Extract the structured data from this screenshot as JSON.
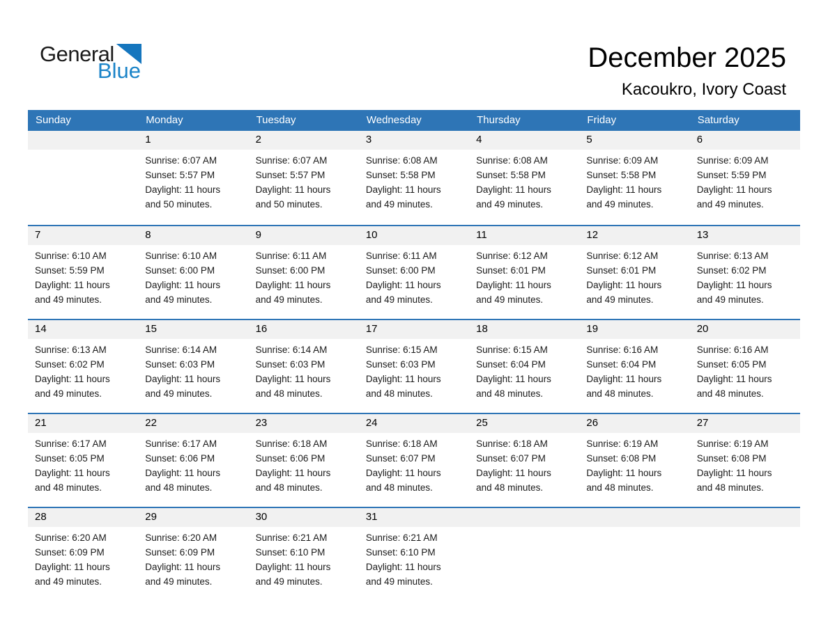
{
  "logo": {
    "part1": "General",
    "part2": "Blue"
  },
  "page_header": {
    "title": "December 2025",
    "subtitle": "Kacoukro, Ivory Coast"
  },
  "colors": {
    "header_blue": "#2E75B6",
    "band_gray": "#F1F1F1",
    "logo_blue": "#1B84C8",
    "triangle_blue": "#1576BE"
  },
  "calendar": {
    "day_names": [
      "Sunday",
      "Monday",
      "Tuesday",
      "Wednesday",
      "Thursday",
      "Friday",
      "Saturday"
    ],
    "weeks": [
      [
        null,
        {
          "num": "1",
          "sunrise": "Sunrise: 6:07 AM",
          "sunset": "Sunset: 5:57 PM",
          "daylight": "Daylight: 11 hours and 50 minutes."
        },
        {
          "num": "2",
          "sunrise": "Sunrise: 6:07 AM",
          "sunset": "Sunset: 5:57 PM",
          "daylight": "Daylight: 11 hours and 50 minutes."
        },
        {
          "num": "3",
          "sunrise": "Sunrise: 6:08 AM",
          "sunset": "Sunset: 5:58 PM",
          "daylight": "Daylight: 11 hours and 49 minutes."
        },
        {
          "num": "4",
          "sunrise": "Sunrise: 6:08 AM",
          "sunset": "Sunset: 5:58 PM",
          "daylight": "Daylight: 11 hours and 49 minutes."
        },
        {
          "num": "5",
          "sunrise": "Sunrise: 6:09 AM",
          "sunset": "Sunset: 5:58 PM",
          "daylight": "Daylight: 11 hours and 49 minutes."
        },
        {
          "num": "6",
          "sunrise": "Sunrise: 6:09 AM",
          "sunset": "Sunset: 5:59 PM",
          "daylight": "Daylight: 11 hours and 49 minutes."
        }
      ],
      [
        {
          "num": "7",
          "sunrise": "Sunrise: 6:10 AM",
          "sunset": "Sunset: 5:59 PM",
          "daylight": "Daylight: 11 hours and 49 minutes."
        },
        {
          "num": "8",
          "sunrise": "Sunrise: 6:10 AM",
          "sunset": "Sunset: 6:00 PM",
          "daylight": "Daylight: 11 hours and 49 minutes."
        },
        {
          "num": "9",
          "sunrise": "Sunrise: 6:11 AM",
          "sunset": "Sunset: 6:00 PM",
          "daylight": "Daylight: 11 hours and 49 minutes."
        },
        {
          "num": "10",
          "sunrise": "Sunrise: 6:11 AM",
          "sunset": "Sunset: 6:00 PM",
          "daylight": "Daylight: 11 hours and 49 minutes."
        },
        {
          "num": "11",
          "sunrise": "Sunrise: 6:12 AM",
          "sunset": "Sunset: 6:01 PM",
          "daylight": "Daylight: 11 hours and 49 minutes."
        },
        {
          "num": "12",
          "sunrise": "Sunrise: 6:12 AM",
          "sunset": "Sunset: 6:01 PM",
          "daylight": "Daylight: 11 hours and 49 minutes."
        },
        {
          "num": "13",
          "sunrise": "Sunrise: 6:13 AM",
          "sunset": "Sunset: 6:02 PM",
          "daylight": "Daylight: 11 hours and 49 minutes."
        }
      ],
      [
        {
          "num": "14",
          "sunrise": "Sunrise: 6:13 AM",
          "sunset": "Sunset: 6:02 PM",
          "daylight": "Daylight: 11 hours and 49 minutes."
        },
        {
          "num": "15",
          "sunrise": "Sunrise: 6:14 AM",
          "sunset": "Sunset: 6:03 PM",
          "daylight": "Daylight: 11 hours and 49 minutes."
        },
        {
          "num": "16",
          "sunrise": "Sunrise: 6:14 AM",
          "sunset": "Sunset: 6:03 PM",
          "daylight": "Daylight: 11 hours and 48 minutes."
        },
        {
          "num": "17",
          "sunrise": "Sunrise: 6:15 AM",
          "sunset": "Sunset: 6:03 PM",
          "daylight": "Daylight: 11 hours and 48 minutes."
        },
        {
          "num": "18",
          "sunrise": "Sunrise: 6:15 AM",
          "sunset": "Sunset: 6:04 PM",
          "daylight": "Daylight: 11 hours and 48 minutes."
        },
        {
          "num": "19",
          "sunrise": "Sunrise: 6:16 AM",
          "sunset": "Sunset: 6:04 PM",
          "daylight": "Daylight: 11 hours and 48 minutes."
        },
        {
          "num": "20",
          "sunrise": "Sunrise: 6:16 AM",
          "sunset": "Sunset: 6:05 PM",
          "daylight": "Daylight: 11 hours and 48 minutes."
        }
      ],
      [
        {
          "num": "21",
          "sunrise": "Sunrise: 6:17 AM",
          "sunset": "Sunset: 6:05 PM",
          "daylight": "Daylight: 11 hours and 48 minutes."
        },
        {
          "num": "22",
          "sunrise": "Sunrise: 6:17 AM",
          "sunset": "Sunset: 6:06 PM",
          "daylight": "Daylight: 11 hours and 48 minutes."
        },
        {
          "num": "23",
          "sunrise": "Sunrise: 6:18 AM",
          "sunset": "Sunset: 6:06 PM",
          "daylight": "Daylight: 11 hours and 48 minutes."
        },
        {
          "num": "24",
          "sunrise": "Sunrise: 6:18 AM",
          "sunset": "Sunset: 6:07 PM",
          "daylight": "Daylight: 11 hours and 48 minutes."
        },
        {
          "num": "25",
          "sunrise": "Sunrise: 6:18 AM",
          "sunset": "Sunset: 6:07 PM",
          "daylight": "Daylight: 11 hours and 48 minutes."
        },
        {
          "num": "26",
          "sunrise": "Sunrise: 6:19 AM",
          "sunset": "Sunset: 6:08 PM",
          "daylight": "Daylight: 11 hours and 48 minutes."
        },
        {
          "num": "27",
          "sunrise": "Sunrise: 6:19 AM",
          "sunset": "Sunset: 6:08 PM",
          "daylight": "Daylight: 11 hours and 48 minutes."
        }
      ],
      [
        {
          "num": "28",
          "sunrise": "Sunrise: 6:20 AM",
          "sunset": "Sunset: 6:09 PM",
          "daylight": "Daylight: 11 hours and 49 minutes."
        },
        {
          "num": "29",
          "sunrise": "Sunrise: 6:20 AM",
          "sunset": "Sunset: 6:09 PM",
          "daylight": "Daylight: 11 hours and 49 minutes."
        },
        {
          "num": "30",
          "sunrise": "Sunrise: 6:21 AM",
          "sunset": "Sunset: 6:10 PM",
          "daylight": "Daylight: 11 hours and 49 minutes."
        },
        {
          "num": "31",
          "sunrise": "Sunrise: 6:21 AM",
          "sunset": "Sunset: 6:10 PM",
          "daylight": "Daylight: 11 hours and 49 minutes."
        },
        null,
        null,
        null
      ]
    ]
  }
}
